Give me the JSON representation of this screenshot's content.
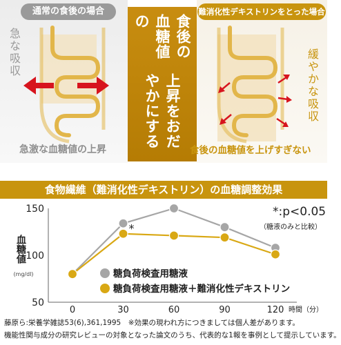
{
  "left_panel": {
    "header": "通常の食後の場合",
    "side_label": "急な吸収",
    "caption": "急激な血糖値の上昇"
  },
  "center_panel": {
    "line1": "食後の血糖値の",
    "line2": "上昇をおだやかにする"
  },
  "right_panel": {
    "header": "難消化性デキストリンをとった場合",
    "side_label": "緩やかな吸収",
    "caption": "食後の血糖値を上げすぎない"
  },
  "colors": {
    "gold": "#c8940e",
    "gray_header": "#9a9a9a",
    "red_arrow": "#d7141e",
    "intestine_fill": "#f3e1bd",
    "series_control": "#a6a6a6",
    "series_dextrin": "#d9a814"
  },
  "chart_data": {
    "type": "line",
    "title": "食物繊維（難消化性デキストリン）の血糖調整効果",
    "ylabel": "血糖値",
    "yunit": "(mg/dl)",
    "xlabel": "時間（分）",
    "x": [
      0,
      30,
      60,
      90,
      120
    ],
    "xticks": [
      "0",
      "30",
      "60",
      "90",
      "120"
    ],
    "ylim": [
      50,
      150
    ],
    "yticks": [
      "50",
      "100",
      "150"
    ],
    "series": [
      {
        "name": "糖負荷検査用糖液",
        "values": [
          80,
          134,
          150,
          130,
          108
        ],
        "color": "#a6a6a6"
      },
      {
        "name": "糖負荷検査用糖液＋難消化性デキストリン",
        "values": [
          80,
          123,
          121,
          119,
          101
        ],
        "color": "#d9a814"
      }
    ],
    "significance": {
      "mark": "*",
      "x": 30
    },
    "annotation": "*:p<0.05",
    "annotation_sub": "（糖液のみと比較）",
    "grid": false,
    "legend_position": "center"
  },
  "footnotes": {
    "line1": "藤原ら:栄養学雑誌53(6),361,1995　※効果の現われ方につきましては個人差があります。",
    "line2": "機能性関与成分の研究レビューの対象となった論文のうち、代表的な1報を事例として提示しています。"
  }
}
